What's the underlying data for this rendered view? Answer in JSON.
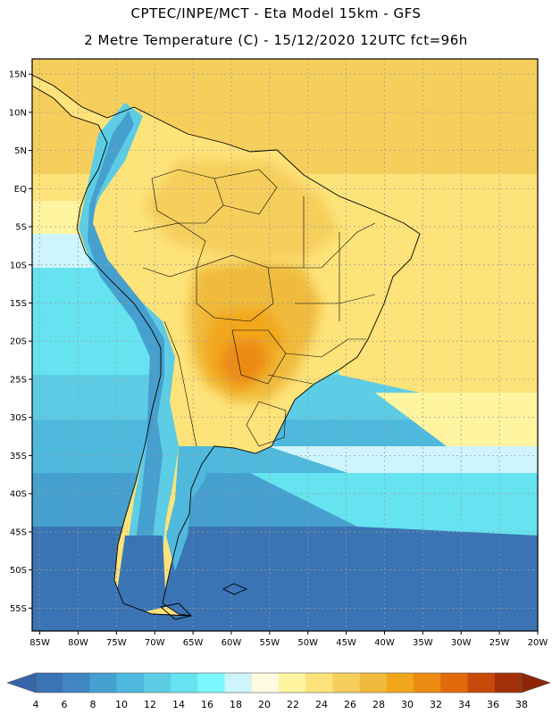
{
  "header": {
    "line1": "CPTEC/INPE/MCT -  Eta Model 15km - GFS",
    "line2": "2 Metre Temperature (C) - 15/12/2020 12UTC fct=96h"
  },
  "map": {
    "variable": "2 Metre Temperature",
    "units": "C",
    "lon_range": [
      -86,
      -20
    ],
    "lat_range": [
      -58,
      17
    ],
    "lat_ticks": [
      "15N",
      "10N",
      "5N",
      "EQ",
      "5S",
      "10S",
      "15S",
      "20S",
      "25S",
      "30S",
      "35S",
      "40S",
      "45S",
      "50S",
      "55S"
    ],
    "lon_ticks": [
      "85W",
      "80W",
      "75W",
      "70W",
      "65W",
      "60W",
      "55W",
      "50W",
      "45W",
      "40W",
      "35W",
      "30W",
      "25W",
      "20W"
    ]
  },
  "colorbar": {
    "labels": [
      "4",
      "6",
      "8",
      "10",
      "12",
      "14",
      "16",
      "18",
      "20",
      "22",
      "24",
      "26",
      "28",
      "30",
      "32",
      "34",
      "36",
      "38"
    ],
    "colors": [
      "#3a74b4",
      "#3f86c2",
      "#45a0cf",
      "#4fb9dd",
      "#5ccde5",
      "#66e3f0",
      "#7af7ff",
      "#cdf5fb",
      "#fffbe0",
      "#fff4a0",
      "#fde37a",
      "#f6ce5c",
      "#f0bb3d",
      "#f2a71a",
      "#ec8a12",
      "#e06a0c",
      "#c84a0a",
      "#a33008"
    ],
    "underflow_color": "#3565a6",
    "overflow_color": "#8c2606"
  }
}
